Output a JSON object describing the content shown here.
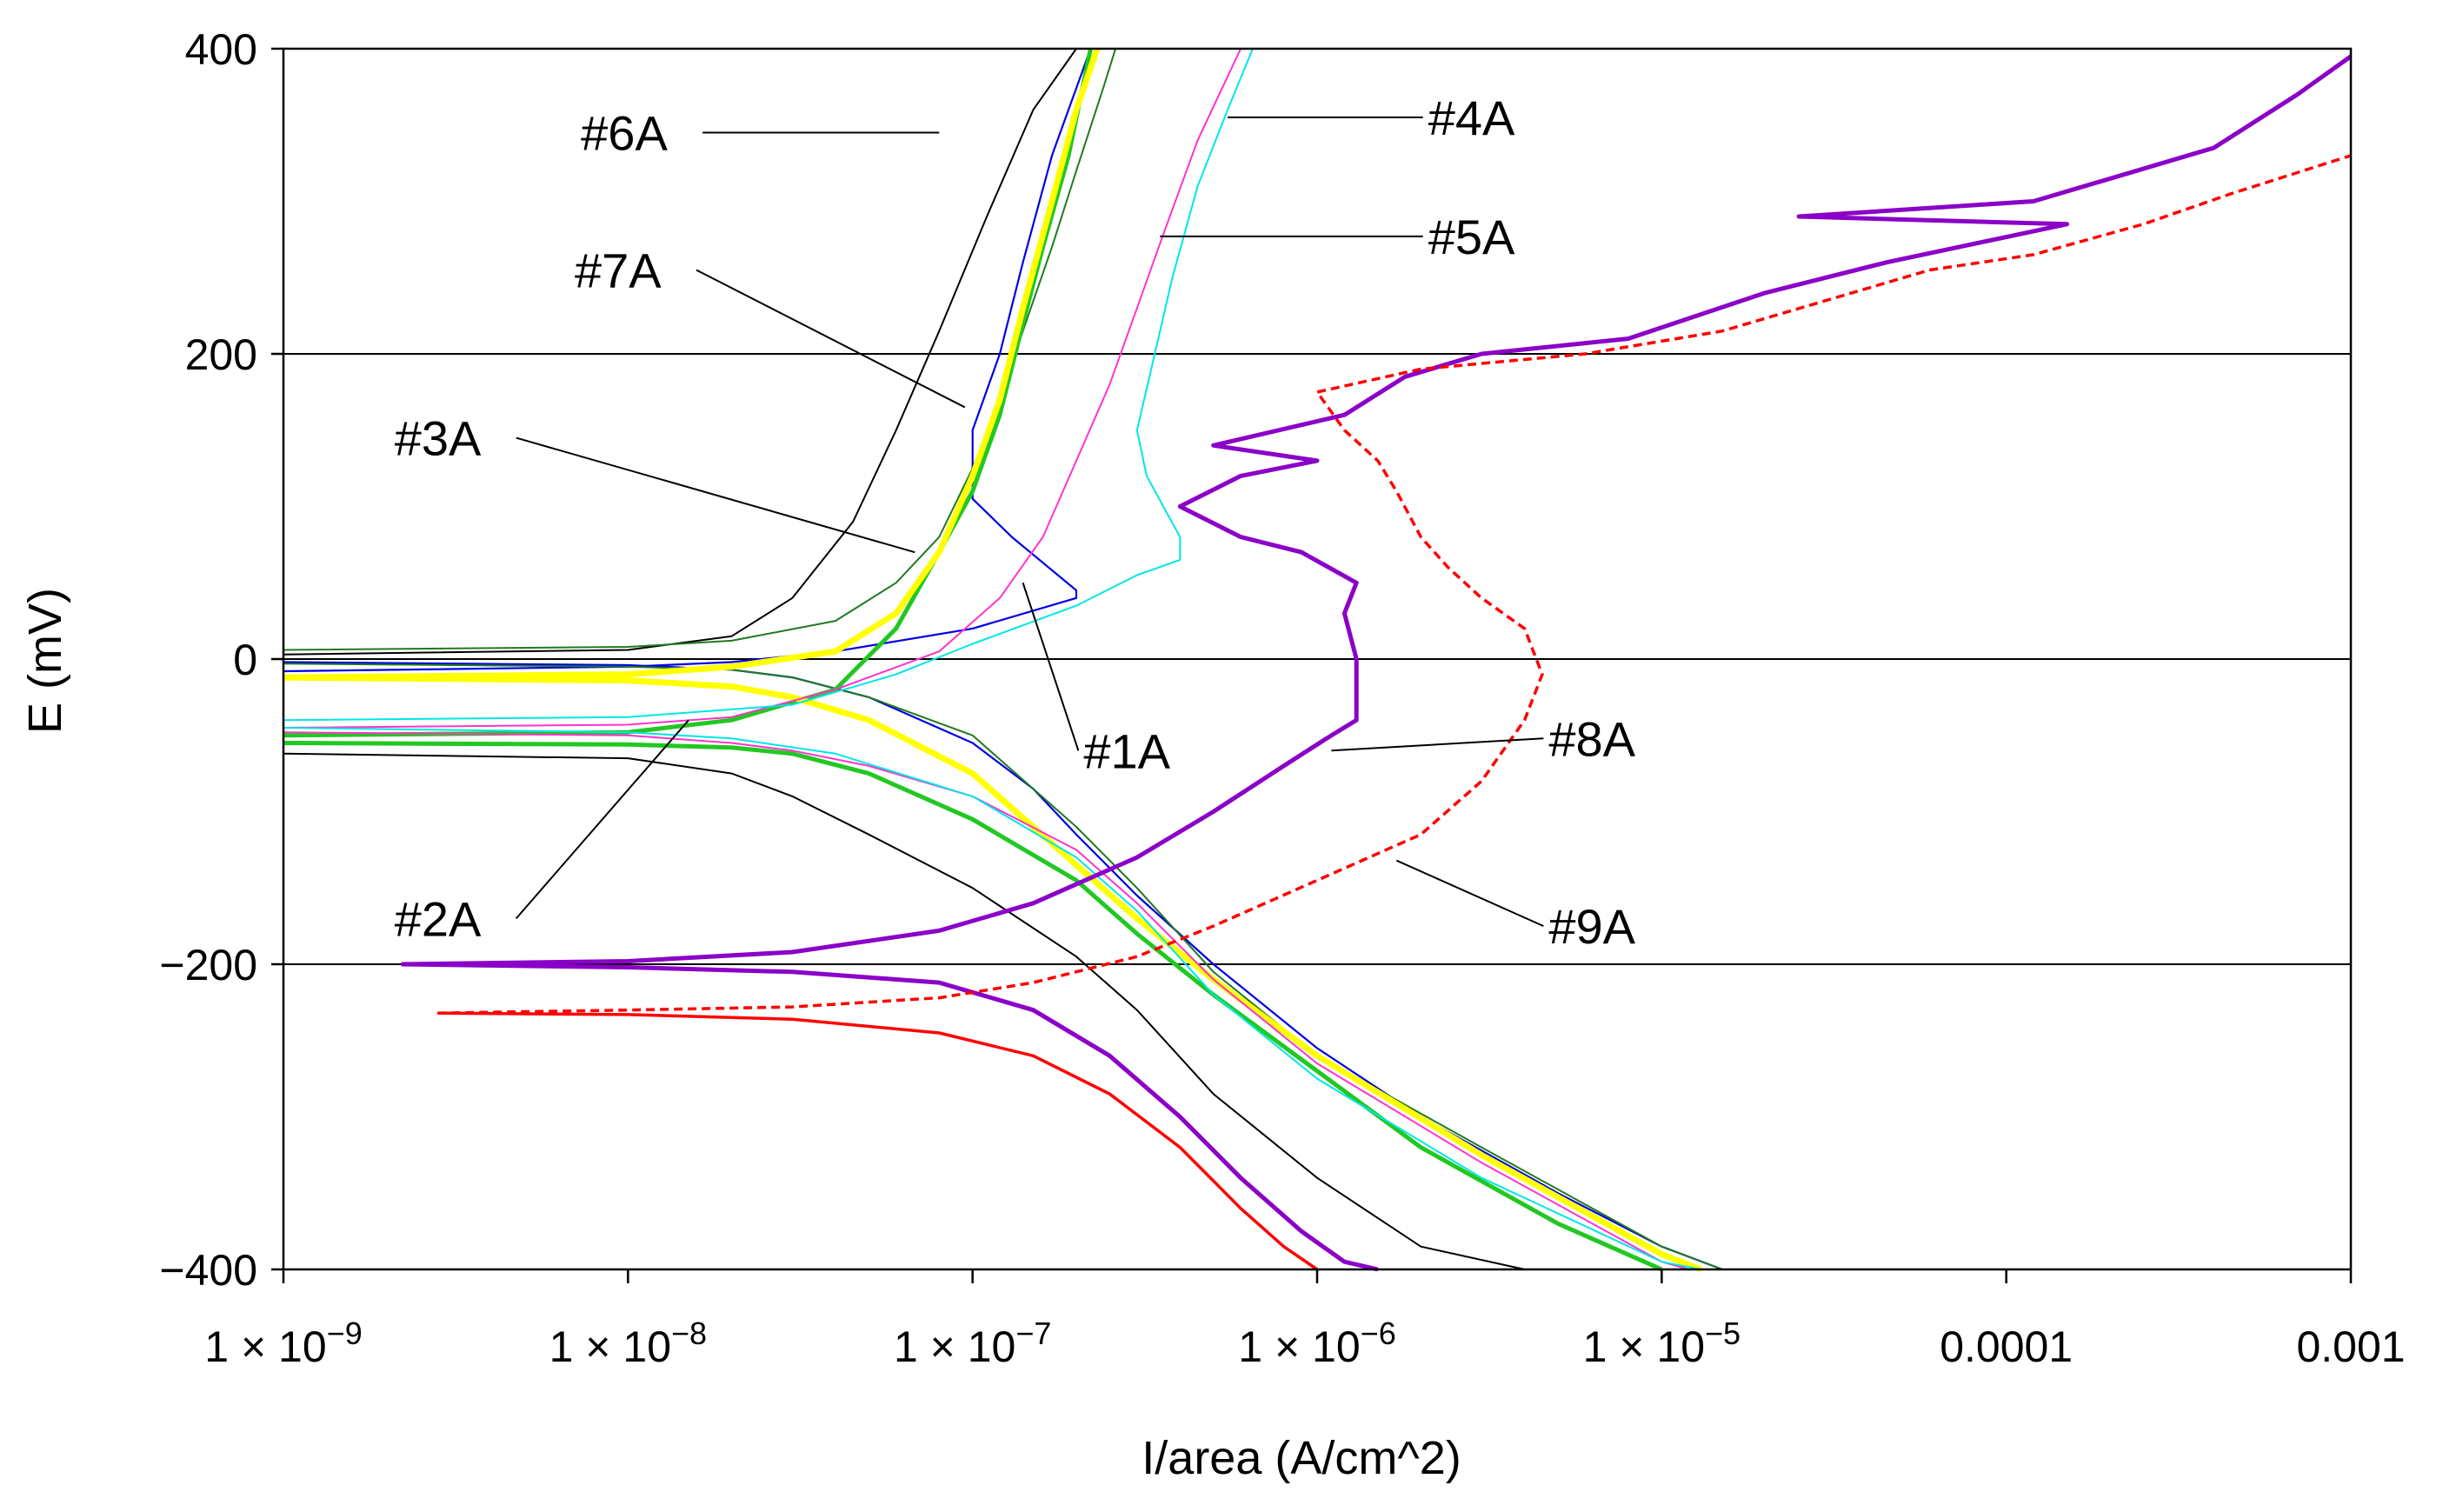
{
  "chart_data": {
    "type": "line",
    "title": "",
    "xlabel": "I/area (A/cm^2)",
    "ylabel": "E (mV)",
    "x_scale": "log",
    "xlim": [
      1e-09,
      0.001
    ],
    "ylim": [
      -400,
      400
    ],
    "grid": "horizontal",
    "x_ticks": [
      {
        "value": 1e-09,
        "mant": "1 × 10",
        "exp": "−9"
      },
      {
        "value": 1e-08,
        "mant": "1 × 10",
        "exp": "−8"
      },
      {
        "value": 1e-07,
        "mant": "1 × 10",
        "exp": "−7"
      },
      {
        "value": 1e-06,
        "mant": "1 × 10",
        "exp": "−6"
      },
      {
        "value": 1e-05,
        "mant": "1 × 10",
        "exp": "−5"
      },
      {
        "value": 0.0001,
        "label": "0.0001"
      },
      {
        "value": 0.001,
        "label": "0.001"
      }
    ],
    "y_ticks": [
      {
        "value": 400,
        "label": "400"
      },
      {
        "value": 200,
        "label": "200"
      },
      {
        "value": 0,
        "label": "0"
      },
      {
        "value": -200,
        "label": "−200"
      },
      {
        "value": -400,
        "label": "−400"
      }
    ],
    "series": [
      {
        "name": "#6A",
        "color": "#000000",
        "width": 2,
        "anodic": [
          [
            1e-09,
            3
          ],
          [
            1e-08,
            6
          ],
          [
            2e-08,
            15
          ],
          [
            3e-08,
            40
          ],
          [
            4.5e-08,
            90
          ],
          [
            6e-08,
            150
          ],
          [
            8e-08,
            215
          ],
          [
            1.1e-07,
            290
          ],
          [
            1.5e-07,
            360
          ],
          [
            2e-07,
            400
          ]
        ],
        "cathodic": [
          [
            1e-09,
            -62
          ],
          [
            1e-08,
            -65
          ],
          [
            2e-08,
            -75
          ],
          [
            3e-08,
            -90
          ],
          [
            5e-08,
            -115
          ],
          [
            1e-07,
            -150
          ],
          [
            2e-07,
            -195
          ],
          [
            3e-07,
            -230
          ],
          [
            5e-07,
            -285
          ],
          [
            1e-06,
            -340
          ],
          [
            2e-06,
            -385
          ],
          [
            4e-06,
            -400
          ]
        ]
      },
      {
        "name": "#1A",
        "color": "#0000e6",
        "width": 2.2,
        "anodic": [
          [
            1e-09,
            -8
          ],
          [
            1e-08,
            -5
          ],
          [
            2e-08,
            -2
          ],
          [
            4e-08,
            5
          ],
          [
            1e-07,
            20
          ],
          [
            2e-07,
            40
          ],
          [
            2e-07,
            45
          ],
          [
            1.3e-07,
            80
          ],
          [
            1e-07,
            105
          ],
          [
            1e-07,
            150
          ],
          [
            1.2e-07,
            200
          ],
          [
            1.4e-07,
            260
          ],
          [
            1.7e-07,
            330
          ],
          [
            2.2e-07,
            400
          ]
        ],
        "cathodic": [
          [
            1e-09,
            -2
          ],
          [
            1e-08,
            -4
          ],
          [
            2e-08,
            -7
          ],
          [
            3e-08,
            -12
          ],
          [
            5e-08,
            -25
          ],
          [
            1e-07,
            -55
          ],
          [
            1.5e-07,
            -85
          ],
          [
            2e-07,
            -115
          ],
          [
            3e-07,
            -155
          ],
          [
            5e-07,
            -200
          ],
          [
            1e-06,
            -255
          ],
          [
            2e-06,
            -300
          ],
          [
            5e-06,
            -350
          ],
          [
            1e-05,
            -385
          ],
          [
            1.5e-05,
            -400
          ]
        ]
      },
      {
        "name": "#7A",
        "color": "#1f7a1f",
        "width": 2,
        "anodic": [
          [
            1e-09,
            6
          ],
          [
            1e-08,
            8
          ],
          [
            2e-08,
            12
          ],
          [
            4e-08,
            25
          ],
          [
            6e-08,
            50
          ],
          [
            8e-08,
            80
          ],
          [
            1e-07,
            125
          ],
          [
            1.2e-07,
            170
          ],
          [
            1.4e-07,
            215
          ],
          [
            1.7e-07,
            270
          ],
          [
            2e-07,
            320
          ],
          [
            2.4e-07,
            375
          ],
          [
            2.6e-07,
            400
          ]
        ],
        "cathodic": [
          [
            1e-09,
            -3
          ],
          [
            1e-08,
            -5
          ],
          [
            2e-08,
            -7
          ],
          [
            3e-08,
            -12
          ],
          [
            5e-08,
            -25
          ],
          [
            1e-07,
            -50
          ],
          [
            2e-07,
            -110
          ],
          [
            3e-07,
            -150
          ],
          [
            5e-07,
            -205
          ],
          [
            1e-06,
            -260
          ],
          [
            3e-06,
            -320
          ],
          [
            1e-05,
            -385
          ],
          [
            1.5e-05,
            -400
          ]
        ]
      },
      {
        "name": "#3A",
        "color": "#22c822",
        "width": 5,
        "anodic": [
          [
            1e-09,
            -50
          ],
          [
            1e-08,
            -48
          ],
          [
            2e-08,
            -40
          ],
          [
            4e-08,
            -20
          ],
          [
            6e-08,
            20
          ],
          [
            8e-08,
            70
          ],
          [
            1e-07,
            110
          ],
          [
            1.2e-07,
            160
          ],
          [
            1.4e-07,
            220
          ],
          [
            1.6e-07,
            270
          ],
          [
            1.9e-07,
            330
          ],
          [
            2.2e-07,
            400
          ]
        ],
        "cathodic": [
          [
            1e-09,
            -55
          ],
          [
            1e-08,
            -56
          ],
          [
            2e-08,
            -58
          ],
          [
            3e-08,
            -62
          ],
          [
            5e-08,
            -75
          ],
          [
            1e-07,
            -105
          ],
          [
            2e-07,
            -145
          ],
          [
            3e-07,
            -180
          ],
          [
            5e-07,
            -220
          ],
          [
            1e-06,
            -270
          ],
          [
            2e-06,
            -320
          ],
          [
            5e-06,
            -370
          ],
          [
            1e-05,
            -400
          ]
        ]
      },
      {
        "name": "#2A",
        "color": "#ffff00",
        "width": 7,
        "anodic": [
          [
            1e-09,
            -12
          ],
          [
            1e-08,
            -10
          ],
          [
            2e-08,
            -5
          ],
          [
            4e-08,
            5
          ],
          [
            6e-08,
            30
          ],
          [
            8e-08,
            70
          ],
          [
            1e-07,
            120
          ],
          [
            1.2e-07,
            170
          ],
          [
            1.4e-07,
            230
          ],
          [
            1.7e-07,
            300
          ],
          [
            2e-07,
            360
          ],
          [
            2.3e-07,
            400
          ]
        ],
        "cathodic": [
          [
            1e-09,
            -12
          ],
          [
            1e-08,
            -14
          ],
          [
            2e-08,
            -18
          ],
          [
            3e-08,
            -25
          ],
          [
            5e-08,
            -40
          ],
          [
            1e-07,
            -75
          ],
          [
            2e-07,
            -135
          ],
          [
            3e-07,
            -170
          ],
          [
            5e-07,
            -210
          ],
          [
            1e-06,
            -260
          ],
          [
            3e-06,
            -325
          ],
          [
            1e-05,
            -390
          ],
          [
            1.3e-05,
            -400
          ]
        ]
      },
      {
        "name": "#4A",
        "color": "#ff33cc",
        "width": 2,
        "anodic": [
          [
            1e-09,
            -45
          ],
          [
            1e-08,
            -43
          ],
          [
            2e-08,
            -38
          ],
          [
            4e-08,
            -20
          ],
          [
            8e-08,
            5
          ],
          [
            1.2e-07,
            40
          ],
          [
            1.6e-07,
            80
          ],
          [
            2e-07,
            130
          ],
          [
            2.5e-07,
            180
          ],
          [
            3e-07,
            230
          ],
          [
            3.6e-07,
            280
          ],
          [
            4.5e-07,
            340
          ],
          [
            6e-07,
            400
          ]
        ],
        "cathodic": [
          [
            1e-09,
            -48
          ],
          [
            1e-08,
            -50
          ],
          [
            2e-08,
            -55
          ],
          [
            3e-08,
            -60
          ],
          [
            5e-08,
            -70
          ],
          [
            1e-07,
            -90
          ],
          [
            2e-07,
            -125
          ],
          [
            3e-07,
            -160
          ],
          [
            5e-07,
            -210
          ],
          [
            1e-06,
            -265
          ],
          [
            3e-06,
            -330
          ],
          [
            1e-05,
            -395
          ],
          [
            1.2e-05,
            -400
          ]
        ]
      },
      {
        "name": "#5A",
        "color": "#00e6e6",
        "width": 2,
        "anodic": [
          [
            1e-09,
            -40
          ],
          [
            1e-08,
            -38
          ],
          [
            3e-08,
            -30
          ],
          [
            6e-08,
            -10
          ],
          [
            1e-07,
            10
          ],
          [
            2e-07,
            35
          ],
          [
            3e-07,
            55
          ],
          [
            4e-07,
            65
          ],
          [
            4e-07,
            80
          ],
          [
            3.2e-07,
            120
          ],
          [
            3e-07,
            150
          ],
          [
            3.3e-07,
            190
          ],
          [
            3.8e-07,
            250
          ],
          [
            4.5e-07,
            310
          ],
          [
            5.5e-07,
            360
          ],
          [
            6.5e-07,
            400
          ]
        ],
        "cathodic": [
          [
            1e-09,
            -45
          ],
          [
            1e-08,
            -48
          ],
          [
            2e-08,
            -52
          ],
          [
            4e-08,
            -62
          ],
          [
            1e-07,
            -90
          ],
          [
            2e-07,
            -130
          ],
          [
            3e-07,
            -165
          ],
          [
            5e-07,
            -220
          ],
          [
            1e-06,
            -275
          ],
          [
            3e-06,
            -340
          ],
          [
            1e-05,
            -395
          ],
          [
            1.3e-05,
            -400
          ]
        ]
      },
      {
        "name": "#8A",
        "color": "#8b00c8",
        "width": 5,
        "anodic": [
          [
            2.2e-09,
            -200
          ],
          [
            1e-08,
            -198
          ],
          [
            3e-08,
            -192
          ],
          [
            8e-08,
            -178
          ],
          [
            1.5e-07,
            -160
          ],
          [
            3e-07,
            -130
          ],
          [
            5e-07,
            -100
          ],
          [
            8e-07,
            -70
          ],
          [
            1.1e-06,
            -50
          ],
          [
            1.3e-06,
            -40
          ],
          [
            1.3e-06,
            0
          ],
          [
            1.2e-06,
            30
          ],
          [
            1.3e-06,
            50
          ],
          [
            9e-07,
            70
          ],
          [
            6e-07,
            80
          ],
          [
            4e-07,
            100
          ],
          [
            6e-07,
            120
          ],
          [
            1e-06,
            130
          ],
          [
            5e-07,
            140
          ],
          [
            1.2e-06,
            160
          ],
          [
            1.8e-06,
            185
          ],
          [
            3e-06,
            200
          ],
          [
            8e-06,
            210
          ],
          [
            2e-05,
            240
          ],
          [
            4.5e-05,
            260
          ],
          [
            0.00015,
            285
          ],
          [
            2.5e-05,
            290
          ],
          [
            0.00012,
            300
          ],
          [
            0.0004,
            335
          ],
          [
            0.0007,
            370
          ],
          [
            0.001,
            395
          ]
        ],
        "cathodic": [
          [
            2.2e-09,
            -200
          ],
          [
            1e-08,
            -202
          ],
          [
            3e-08,
            -205
          ],
          [
            8e-08,
            -212
          ],
          [
            1.5e-07,
            -230
          ],
          [
            2.5e-07,
            -260
          ],
          [
            4e-07,
            -300
          ],
          [
            6e-07,
            -340
          ],
          [
            9e-07,
            -375
          ],
          [
            1.2e-06,
            -395
          ],
          [
            1.5e-06,
            -400
          ]
        ]
      },
      {
        "name": "#9A",
        "color": "#ff0000",
        "width": 3.5,
        "dash": "10 6",
        "anodic": [
          [
            2.8e-09,
            -232
          ],
          [
            1e-08,
            -230
          ],
          [
            3e-08,
            -228
          ],
          [
            8e-08,
            -222
          ],
          [
            1.5e-07,
            -212
          ],
          [
            3e-07,
            -195
          ],
          [
            5e-07,
            -175
          ],
          [
            1e-06,
            -145
          ],
          [
            2e-06,
            -115
          ],
          [
            3e-06,
            -80
          ],
          [
            4e-06,
            -40
          ],
          [
            4.5e-06,
            -10
          ],
          [
            4e-06,
            20
          ],
          [
            3e-06,
            40
          ],
          [
            2.4e-06,
            60
          ],
          [
            2e-06,
            80
          ],
          [
            1.7e-06,
            110
          ],
          [
            1.5e-06,
            130
          ],
          [
            1.2e-06,
            150
          ],
          [
            1e-06,
            175
          ],
          [
            2e-06,
            190
          ],
          [
            6e-06,
            200
          ],
          [
            1.5e-05,
            215
          ],
          [
            3e-05,
            235
          ],
          [
            6e-05,
            255
          ],
          [
            0.00012,
            265
          ],
          [
            0.00025,
            285
          ],
          [
            0.00045,
            305
          ],
          [
            0.001,
            330
          ]
        ],
        "cathodic": [
          [
            2.8e-09,
            -232
          ],
          [
            1e-08,
            -233
          ],
          [
            3e-08,
            -236
          ],
          [
            8e-08,
            -245
          ],
          [
            1.5e-07,
            -260
          ],
          [
            2.5e-07,
            -285
          ],
          [
            4e-07,
            -320
          ],
          [
            6e-07,
            -360
          ],
          [
            8e-07,
            -385
          ],
          [
            1e-06,
            -400
          ]
        ]
      }
    ],
    "annotations": [
      {
        "text": "#6A",
        "tx": 7.3e-09,
        "ty": 345,
        "ax": 8e-08,
        "ay": 345
      },
      {
        "text": "#7A",
        "tx": 7e-09,
        "ty": 255,
        "ax": 9.5e-08,
        "ay": 165
      },
      {
        "text": "#3A",
        "tx": 2.1e-09,
        "ty": 145,
        "ax": 6.8e-08,
        "ay": 70
      },
      {
        "text": "#4A",
        "tx": 2.1e-06,
        "ty": 355,
        "ax": 5.5e-07,
        "ay": 355
      },
      {
        "text": "#5A",
        "tx": 2.1e-06,
        "ty": 277,
        "ax": 3.5e-07,
        "ay": 277
      },
      {
        "text": "#1A",
        "tx": 2.1e-07,
        "ty": -60,
        "ax": 1.4e-07,
        "ay": 50
      },
      {
        "text": "#2A",
        "tx": 2.1e-09,
        "ty": -170,
        "ax": 1.5e-08,
        "ay": -40
      },
      {
        "text": "#8A",
        "tx": 4.7e-06,
        "ty": -52,
        "ax": 1.1e-06,
        "ay": -60
      },
      {
        "text": "#9A",
        "tx": 4.7e-06,
        "ty": -175,
        "ax": 1.7e-06,
        "ay": -132
      }
    ]
  }
}
